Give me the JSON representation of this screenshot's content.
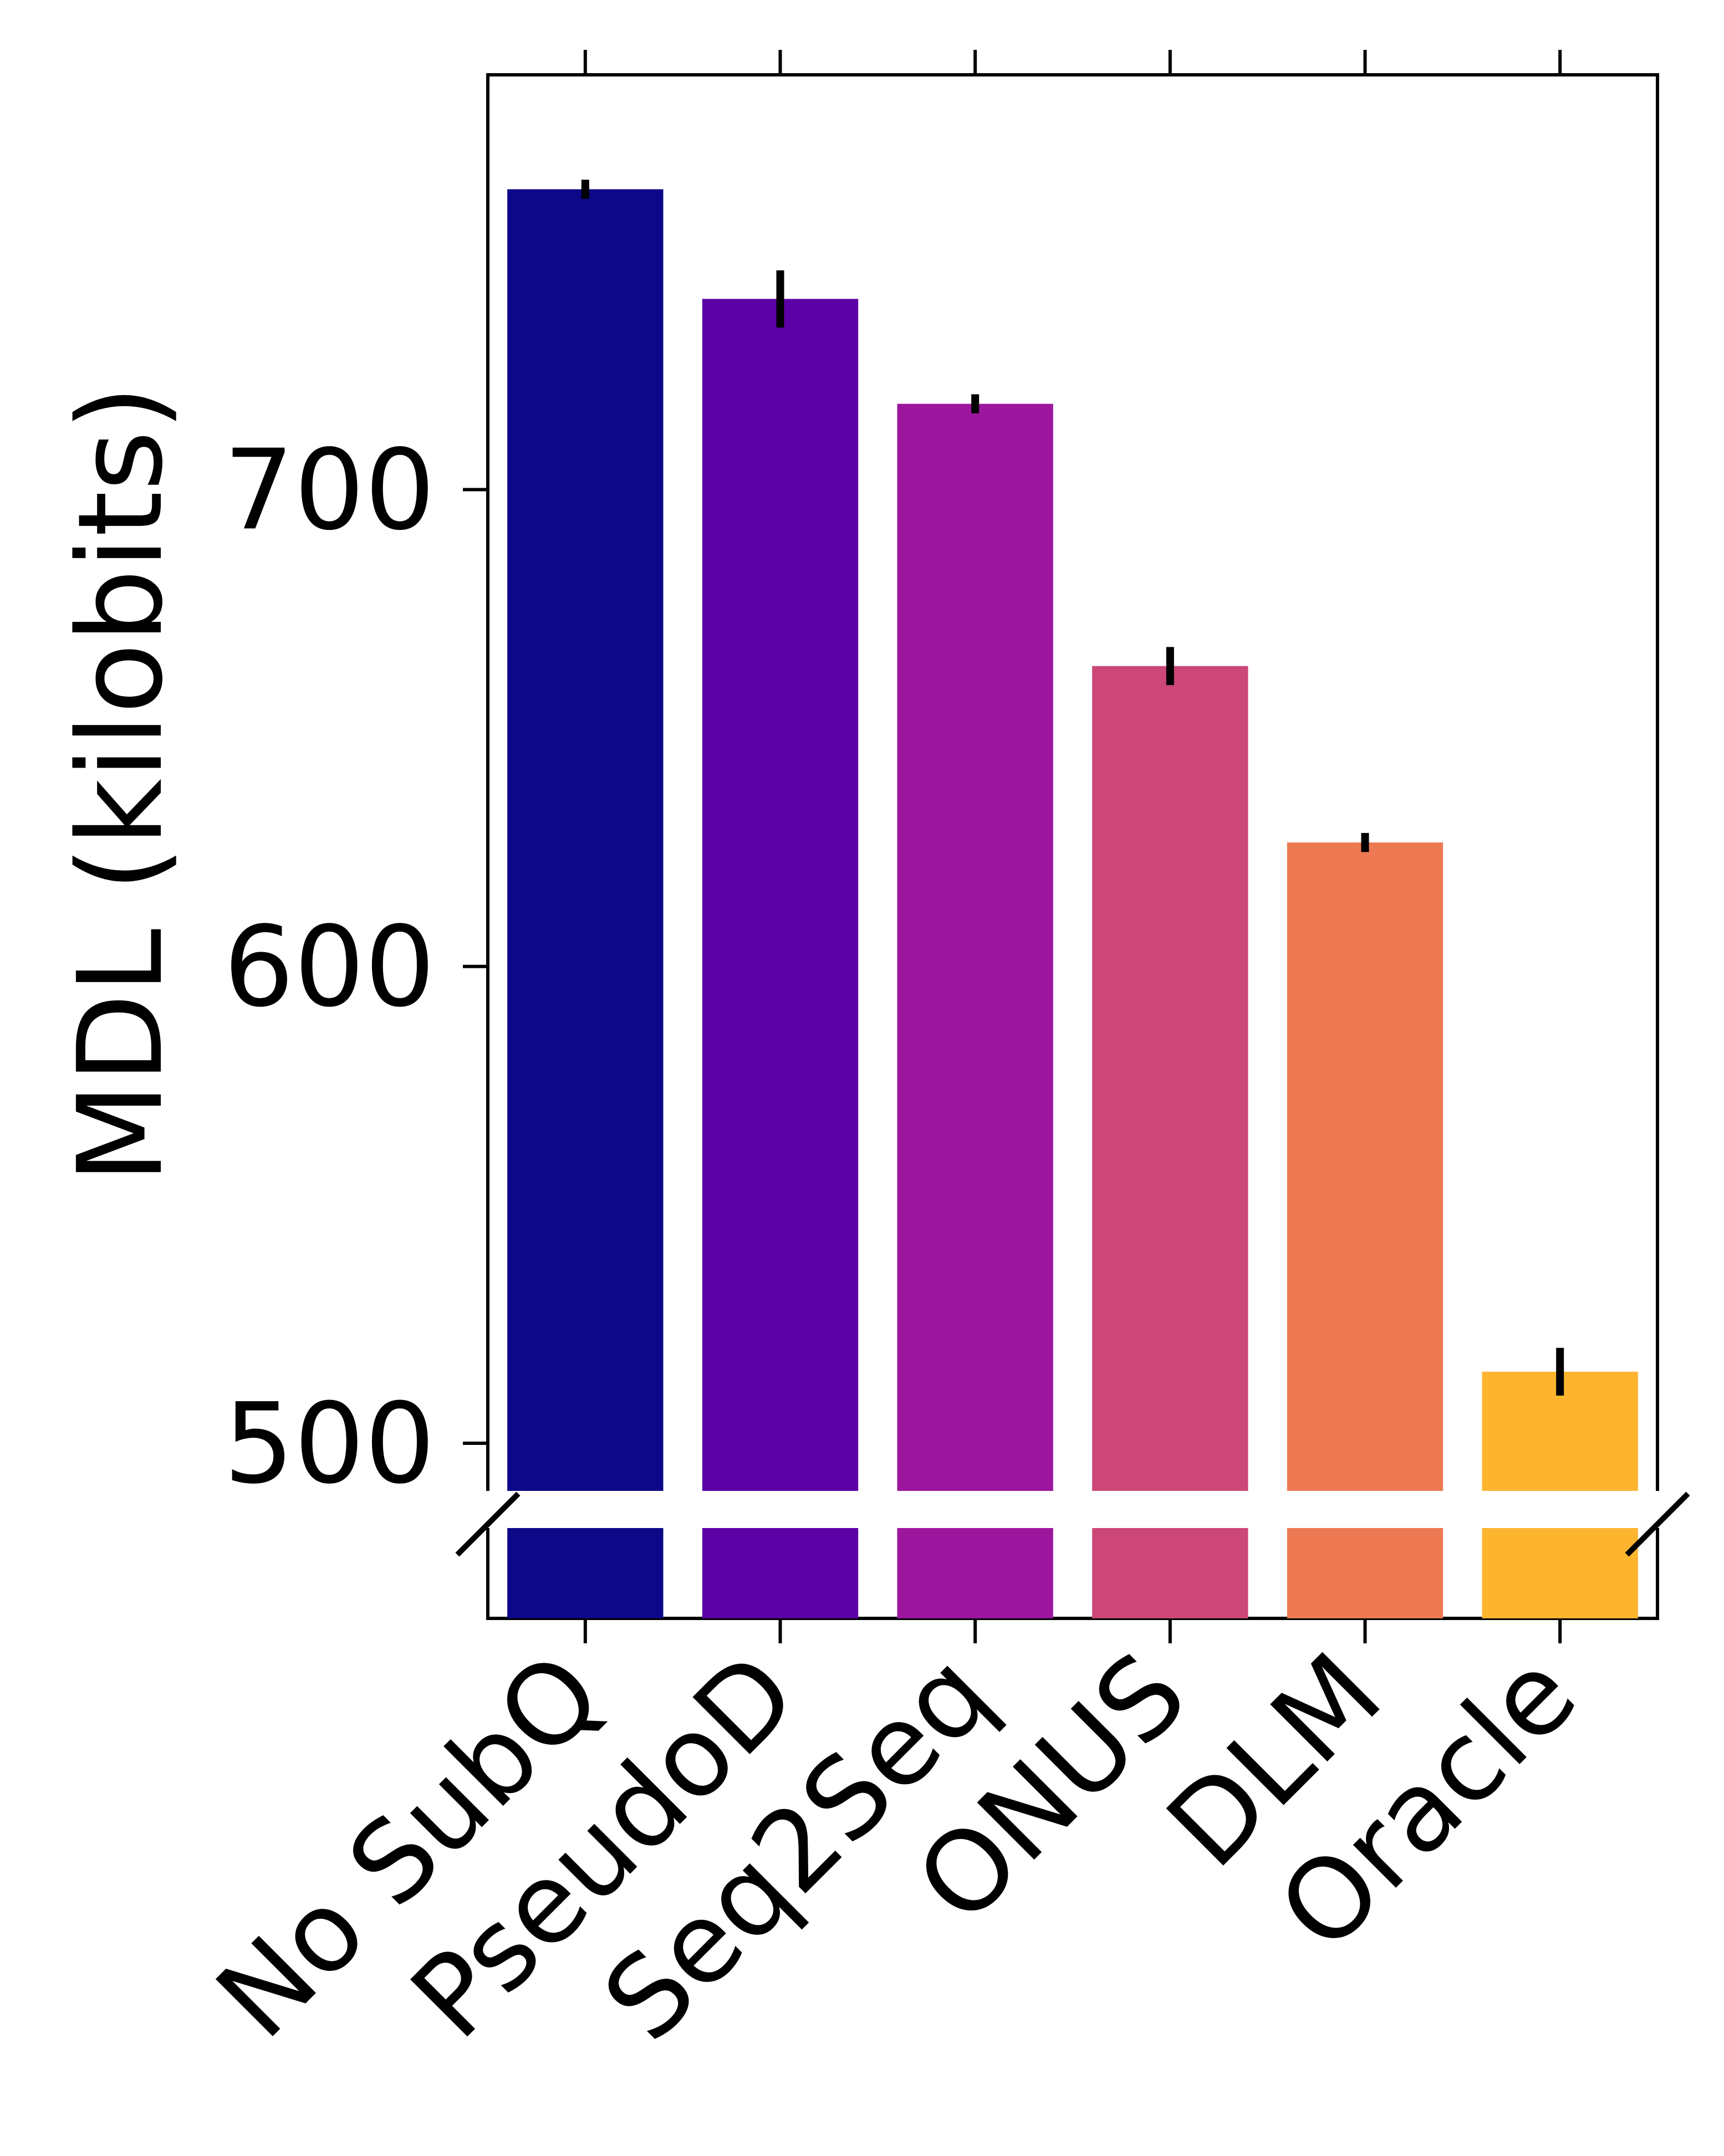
{
  "chart_data": {
    "type": "bar",
    "categories": [
      "No SubQ",
      "PseudoD",
      "Seq2Seq",
      "ONUS",
      "DLM",
      "Oracle"
    ],
    "values": [
      763,
      740,
      718,
      663,
      626,
      515
    ],
    "errors": [
      2,
      6,
      2,
      4,
      2,
      5
    ],
    "colors": [
      "#0d0887",
      "#5c01a6",
      "#9c179e",
      "#cc4778",
      "#ed7953",
      "#fdb42f"
    ],
    "title": "",
    "xlabel": "",
    "ylabel": "MDL (kilobits)",
    "ylim": [
      490,
      787
    ],
    "yticks": [
      500,
      600,
      700
    ],
    "broken_axis": true,
    "grid": false
  }
}
